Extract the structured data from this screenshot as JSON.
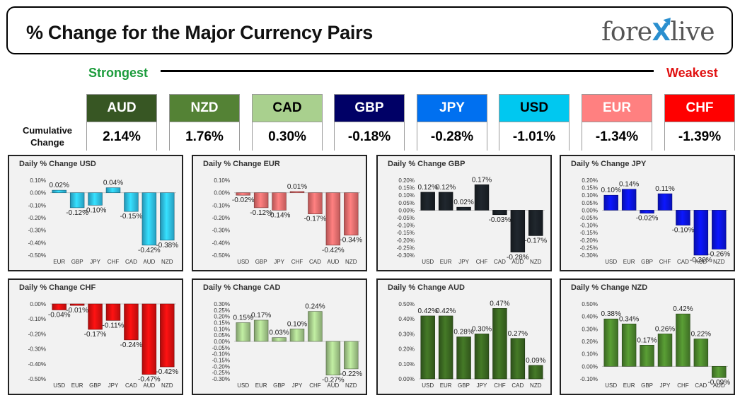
{
  "header": {
    "title": "% Change for the Major Currency Pairs",
    "logo_left": "fore",
    "logo_x": "X",
    "logo_right": "live"
  },
  "scale": {
    "strongest": "Strongest",
    "weakest": "Weakest"
  },
  "cumulative": {
    "label_line1": "Cumulative",
    "label_line2": "Change",
    "items": [
      {
        "code": "AUD",
        "value": "2.14%",
        "bg": "#375623",
        "fg": "#ffffff"
      },
      {
        "code": "NZD",
        "value": "1.76%",
        "bg": "#548235",
        "fg": "#ffffff"
      },
      {
        "code": "CAD",
        "value": "0.30%",
        "bg": "#a9d08e",
        "fg": "#000000"
      },
      {
        "code": "GBP",
        "value": "-0.18%",
        "bg": "#000066",
        "fg": "#ffffff"
      },
      {
        "code": "JPY",
        "value": "-0.28%",
        "bg": "#0070f0",
        "fg": "#ffffff"
      },
      {
        "code": "USD",
        "value": "-1.01%",
        "bg": "#00c8f0",
        "fg": "#000000"
      },
      {
        "code": "EUR",
        "value": "-1.34%",
        "bg": "#ff8080",
        "fg": "#ffffff"
      },
      {
        "code": "CHF",
        "value": "-1.39%",
        "bg": "#ff0000",
        "fg": "#ffffff"
      }
    ]
  },
  "chart_data": [
    {
      "type": "bar",
      "title": "Daily % Change USD",
      "categories": [
        "EUR",
        "GBP",
        "JPY",
        "CHF",
        "CAD",
        "AUD",
        "NZD"
      ],
      "values": [
        0.02,
        -0.12,
        -0.1,
        0.04,
        -0.15,
        -0.42,
        -0.38
      ],
      "labels": [
        "0.02%",
        "-0.12%",
        "-0.10%",
        "0.04%",
        "-0.15%",
        "-0.42%",
        "-0.38%"
      ],
      "yticks": [
        "0.10%",
        "0.00%",
        "-0.10%",
        "-0.20%",
        "-0.30%",
        "-0.40%",
        "-0.50%"
      ],
      "ylim": [
        -0.5,
        0.1
      ],
      "color": "#30c4ef"
    },
    {
      "type": "bar",
      "title": "Daily % Change EUR",
      "categories": [
        "USD",
        "GBP",
        "JPY",
        "CHF",
        "CAD",
        "AUD",
        "NZD"
      ],
      "values": [
        -0.02,
        -0.12,
        -0.14,
        0.01,
        -0.17,
        -0.42,
        -0.34
      ],
      "labels": [
        "-0.02%",
        "-0.12%",
        "-0.14%",
        "0.01%",
        "-0.17%",
        "-0.42%",
        "-0.34%"
      ],
      "yticks": [
        "0.10%",
        "0.00%",
        "-0.10%",
        "-0.20%",
        "-0.30%",
        "-0.40%",
        "-0.50%"
      ],
      "ylim": [
        -0.5,
        0.1
      ],
      "color": "#f07070"
    },
    {
      "type": "bar",
      "title": "Daily % Change GBP",
      "categories": [
        "USD",
        "EUR",
        "JPY",
        "CHF",
        "CAD",
        "AUD",
        "NZD"
      ],
      "values": [
        0.12,
        0.12,
        0.02,
        0.17,
        -0.03,
        -0.28,
        -0.17
      ],
      "labels": [
        "0.12%",
        "0.12%",
        "0.02%",
        "0.17%",
        "-0.03%",
        "-0.28%",
        "-0.17%"
      ],
      "yticks": [
        "0.20%",
        "0.15%",
        "0.10%",
        "0.05%",
        "0.00%",
        "-0.05%",
        "-0.10%",
        "-0.15%",
        "-0.20%",
        "-0.25%",
        "-0.30%"
      ],
      "ylim": [
        -0.3,
        0.2
      ],
      "color": "#1c2228"
    },
    {
      "type": "bar",
      "title": "Daily % Change JPY",
      "categories": [
        "USD",
        "EUR",
        "GBP",
        "CHF",
        "CAD",
        "AUD",
        "NZD"
      ],
      "values": [
        0.1,
        0.14,
        -0.02,
        0.11,
        -0.1,
        -0.3,
        -0.26
      ],
      "labels": [
        "0.10%",
        "0.14%",
        "-0.02%",
        "0.11%",
        "-0.10%",
        "-0.30%",
        "-0.26%"
      ],
      "yticks": [
        "0.20%",
        "0.15%",
        "0.10%",
        "0.05%",
        "0.00%",
        "-0.05%",
        "-0.10%",
        "-0.15%",
        "-0.20%",
        "-0.25%",
        "-0.30%"
      ],
      "ylim": [
        -0.3,
        0.2
      ],
      "color": "#0a14e6"
    },
    {
      "type": "bar",
      "title": "Daily % Change CHF",
      "categories": [
        "USD",
        "EUR",
        "GBP",
        "JPY",
        "CAD",
        "AUD",
        "NZD"
      ],
      "values": [
        -0.04,
        -0.01,
        -0.17,
        -0.11,
        -0.24,
        -0.47,
        -0.42
      ],
      "labels": [
        "-0.04%",
        "-0.01%",
        "-0.17%",
        "-0.11%",
        "-0.24%",
        "-0.47%",
        "-0.42%"
      ],
      "yticks": [
        "0.00%",
        "-0.10%",
        "-0.20%",
        "-0.30%",
        "-0.40%",
        "-0.50%"
      ],
      "ylim": [
        -0.5,
        0.0
      ],
      "color": "#e61010"
    },
    {
      "type": "bar",
      "title": "Daily % Change CAD",
      "categories": [
        "USD",
        "EUR",
        "GBP",
        "JPY",
        "CHF",
        "AUD",
        "NZD"
      ],
      "values": [
        0.15,
        0.17,
        0.03,
        0.1,
        0.24,
        -0.27,
        -0.22
      ],
      "labels": [
        "0.15%",
        "0.17%",
        "0.03%",
        "0.10%",
        "0.24%",
        "-0.27%",
        "-0.22%"
      ],
      "yticks": [
        "0.30%",
        "0.25%",
        "0.20%",
        "0.15%",
        "0.10%",
        "0.05%",
        "0.00%",
        "-0.05%",
        "-0.10%",
        "-0.15%",
        "-0.20%",
        "-0.25%",
        "-0.30%"
      ],
      "ylim": [
        -0.3,
        0.3
      ],
      "color": "#a9d08e"
    },
    {
      "type": "bar",
      "title": "Daily % Change AUD",
      "categories": [
        "USD",
        "EUR",
        "GBP",
        "JPY",
        "CHF",
        "CAD",
        "NZD"
      ],
      "values": [
        0.42,
        0.42,
        0.28,
        0.3,
        0.47,
        0.27,
        0.09
      ],
      "labels": [
        "0.42%",
        "0.42%",
        "0.28%",
        "0.30%",
        "0.47%",
        "0.27%",
        "0.09%"
      ],
      "yticks": [
        "0.50%",
        "0.40%",
        "0.30%",
        "0.20%",
        "0.10%",
        "0.00%"
      ],
      "ylim": [
        0.0,
        0.5
      ],
      "color": "#3c6a22"
    },
    {
      "type": "bar",
      "title": "Daily % Change NZD",
      "categories": [
        "USD",
        "EUR",
        "GBP",
        "JPY",
        "CHF",
        "CAD",
        "AUD"
      ],
      "values": [
        0.38,
        0.34,
        0.17,
        0.26,
        0.42,
        0.22,
        -0.09
      ],
      "labels": [
        "0.38%",
        "0.34%",
        "0.17%",
        "0.26%",
        "0.42%",
        "0.22%",
        "-0.09%"
      ],
      "yticks": [
        "0.50%",
        "0.40%",
        "0.30%",
        "0.20%",
        "0.10%",
        "0.00%",
        "-0.10%"
      ],
      "ylim": [
        -0.1,
        0.5
      ],
      "color": "#4e8a2e"
    }
  ]
}
